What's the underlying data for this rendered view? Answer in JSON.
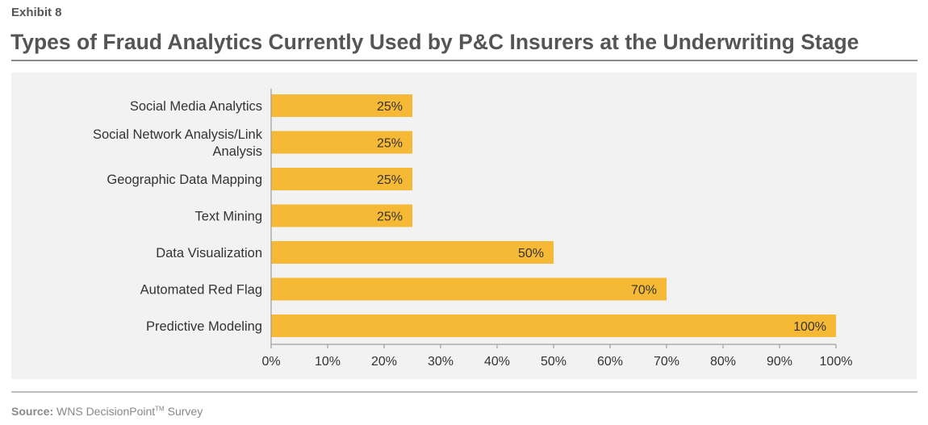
{
  "header": {
    "exhibit": "Exhibit 8",
    "title": "Types of Fraud Analytics Currently Used by P&C Insurers at the Underwriting Stage"
  },
  "footer": {
    "source_label": "Source:",
    "source_text": "WNS DecisionPoint",
    "source_sup": "TM",
    "source_suffix": "Survey"
  },
  "colors": {
    "bar": "#f6b935",
    "panel": "#f2f2f2",
    "axis": "#a0a0a0"
  },
  "chart_data": {
    "type": "bar",
    "orientation": "horizontal",
    "categories": [
      [
        "Social Media Analytics"
      ],
      [
        "Social Network Analysis/Link",
        "Analysis"
      ],
      [
        "Geographic Data Mapping"
      ],
      [
        "Text Mining"
      ],
      [
        "Data Visualization"
      ],
      [
        "Automated Red Flag"
      ],
      [
        "Predictive Modeling"
      ]
    ],
    "values": [
      25,
      25,
      25,
      25,
      50,
      70,
      100
    ],
    "data_labels": [
      "25%",
      "25%",
      "25%",
      "25%",
      "50%",
      "70%",
      "100%"
    ],
    "xlim": [
      0,
      100
    ],
    "xticks": [
      0,
      10,
      20,
      30,
      40,
      50,
      60,
      70,
      80,
      90,
      100
    ],
    "xtick_labels": [
      "0%",
      "10%",
      "20%",
      "30%",
      "40%",
      "50%",
      "60%",
      "70%",
      "80%",
      "90%",
      "100%"
    ],
    "grid": false,
    "legend": "none"
  }
}
